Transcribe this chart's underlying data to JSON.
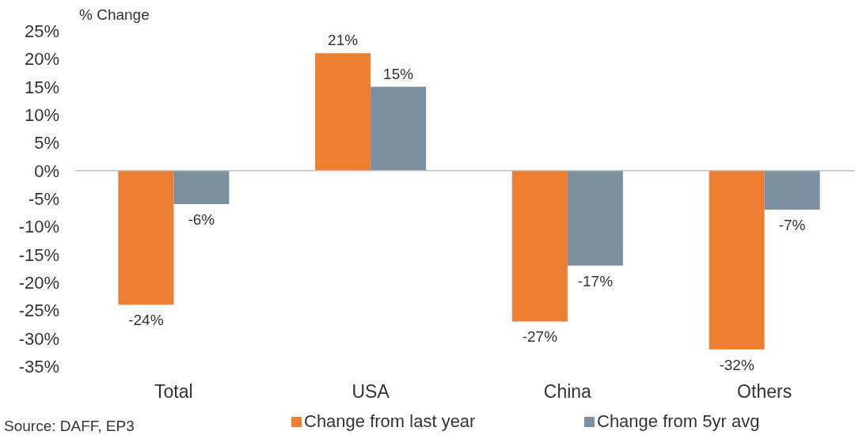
{
  "chart_data": {
    "type": "bar",
    "ylabel": "% Change",
    "categories": [
      "Total",
      "USA",
      "China",
      "Others"
    ],
    "series": [
      {
        "name": "Change from last year",
        "color": "#ed7d31",
        "values": [
          -24,
          21,
          -27,
          -32
        ],
        "value_labels": [
          "-24%",
          "21%",
          "-27%",
          "-32%"
        ]
      },
      {
        "name": "Change from 5yr avg",
        "color": "#7a909f",
        "values": [
          -6,
          15,
          -17,
          -7
        ],
        "value_labels": [
          "-6%",
          "15%",
          "-17%",
          "-7%"
        ]
      }
    ],
    "ylim": [
      -35,
      25
    ],
    "yticks": [
      {
        "value": -35,
        "label": "-35%"
      },
      {
        "value": -30,
        "label": "-30%"
      },
      {
        "value": -25,
        "label": "-25%"
      },
      {
        "value": -20,
        "label": "-20%"
      },
      {
        "value": -15,
        "label": "-15%"
      },
      {
        "value": -10,
        "label": "-10%"
      },
      {
        "value": -5,
        "label": "-5%"
      },
      {
        "value": 0,
        "label": "0%"
      },
      {
        "value": 5,
        "label": "5%"
      },
      {
        "value": 10,
        "label": "10%"
      },
      {
        "value": 15,
        "label": "15%"
      },
      {
        "value": 20,
        "label": "20%"
      },
      {
        "value": 25,
        "label": "25%"
      }
    ],
    "legend": "bottom",
    "annotations": [
      "Source: DAFF, EP3"
    ]
  }
}
